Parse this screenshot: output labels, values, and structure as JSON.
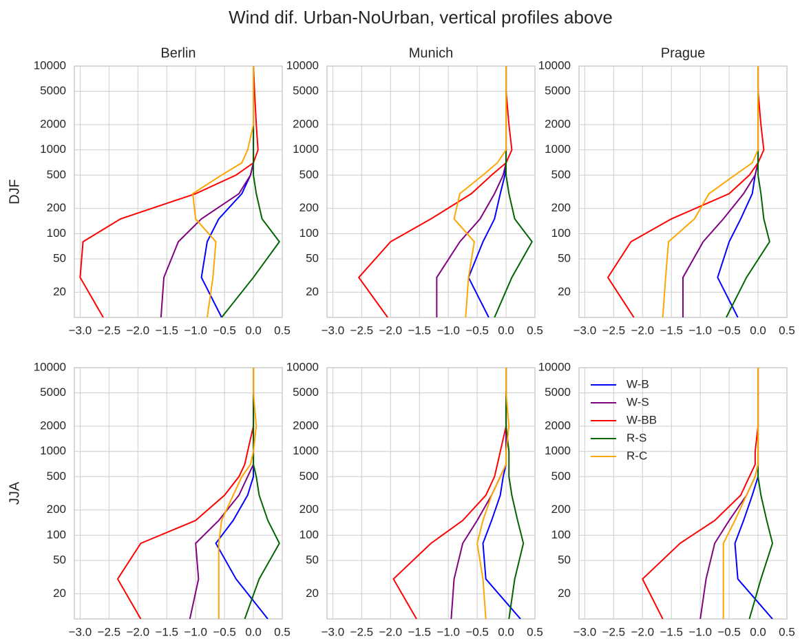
{
  "title": "Wind dif. Urban-NoUrban, vertical profiles above",
  "chart_data": [
    {
      "type": "line",
      "title": "Berlin",
      "ylabel": "DJF",
      "yscale": "log",
      "grid": true,
      "xlim": [
        -3.1,
        0.5
      ],
      "ylim": [
        10,
        10000
      ],
      "xticks": [
        {
          "value": -3.0,
          "label": "−3.0"
        },
        {
          "value": -2.5,
          "label": "−2.5"
        },
        {
          "value": -2.0,
          "label": "−2.0"
        },
        {
          "value": -1.5,
          "label": "−1.5"
        },
        {
          "value": -1.0,
          "label": "−1.0"
        },
        {
          "value": -0.5,
          "label": "−0.5"
        },
        {
          "value": 0,
          "label": "0.0"
        },
        0.5
      ],
      "yticks": [
        20,
        50,
        100,
        200,
        500,
        1000,
        2000,
        5000,
        10000
      ],
      "y": [
        10,
        30,
        80,
        150,
        300,
        500,
        700,
        1000,
        2000,
        5000,
        10000
      ],
      "series": [
        {
          "name": "W-B",
          "color": "#0000ff",
          "values": [
            -0.55,
            -0.9,
            -0.8,
            -0.6,
            -0.2,
            -0.05,
            0.0,
            0.0,
            0.0,
            0.0,
            0.0
          ]
        },
        {
          "name": "W-S",
          "color": "#800080",
          "values": [
            -1.6,
            -1.55,
            -1.3,
            -0.9,
            -0.25,
            -0.05,
            0.0,
            0.0,
            0.0,
            0.0,
            0.0
          ]
        },
        {
          "name": "W-BB",
          "color": "#ff0000",
          "values": [
            -2.6,
            -3.0,
            -2.95,
            -2.3,
            -1.0,
            -0.3,
            0.0,
            0.08,
            0.05,
            0.02,
            0.0
          ]
        },
        {
          "name": "R-S",
          "color": "#006400",
          "values": [
            -0.55,
            0.0,
            0.45,
            0.15,
            0.05,
            0.0,
            0.0,
            0.0,
            0.0,
            0.0,
            0.0
          ]
        },
        {
          "name": "R-C",
          "color": "#ffa500",
          "values": [
            -0.8,
            -0.7,
            -0.65,
            -1.0,
            -1.05,
            -0.55,
            -0.2,
            -0.1,
            0.0,
            0.0,
            0.0
          ]
        }
      ]
    },
    {
      "type": "line",
      "title": "Munich",
      "yscale": "log",
      "grid": true,
      "xlim": [
        -3.1,
        0.5
      ],
      "ylim": [
        10,
        10000
      ],
      "xticks": [
        {
          "value": -3.0,
          "label": "−3.0"
        },
        {
          "value": -2.5,
          "label": "−2.5"
        },
        {
          "value": -2.0,
          "label": "−2.0"
        },
        {
          "value": -1.5,
          "label": "−1.5"
        },
        {
          "value": -1.0,
          "label": "−1.0"
        },
        {
          "value": -0.5,
          "label": "−0.5"
        },
        {
          "value": 0,
          "label": "0.0"
        },
        0.5
      ],
      "yticks": [
        20,
        50,
        100,
        200,
        500,
        1000,
        2000,
        5000,
        10000
      ],
      "y": [
        10,
        30,
        80,
        150,
        300,
        500,
        700,
        1000,
        2000,
        5000,
        10000
      ],
      "series": [
        {
          "name": "W-B",
          "color": "#0000ff",
          "values": [
            -0.3,
            -0.65,
            -0.4,
            -0.2,
            -0.1,
            -0.02,
            0.0,
            0.0,
            0.0,
            0.0,
            0.0
          ]
        },
        {
          "name": "W-S",
          "color": "#800080",
          "values": [
            -1.2,
            -1.2,
            -0.8,
            -0.45,
            -0.2,
            -0.05,
            0.0,
            0.0,
            0.0,
            0.0,
            0.0
          ]
        },
        {
          "name": "W-BB",
          "color": "#ff0000",
          "values": [
            -2.05,
            -2.55,
            -2.0,
            -1.3,
            -0.6,
            -0.25,
            0.0,
            0.1,
            0.05,
            0.0,
            0.0
          ]
        },
        {
          "name": "R-S",
          "color": "#006400",
          "values": [
            -0.2,
            0.1,
            0.45,
            0.15,
            0.05,
            0.0,
            0.0,
            0.0,
            0.0,
            0.0,
            0.0
          ]
        },
        {
          "name": "R-C",
          "color": "#ffa500",
          "values": [
            -0.7,
            -0.65,
            -0.55,
            -0.9,
            -0.8,
            -0.4,
            -0.15,
            0.0,
            0.0,
            0.0,
            0.0
          ]
        }
      ]
    },
    {
      "type": "line",
      "title": "Prague",
      "yscale": "log",
      "grid": true,
      "xlim": [
        -3.1,
        0.5
      ],
      "ylim": [
        10,
        10000
      ],
      "xticks": [
        {
          "value": -3.0,
          "label": "−3.0"
        },
        {
          "value": -2.5,
          "label": "−2.5"
        },
        {
          "value": -2.0,
          "label": "−2.0"
        },
        {
          "value": -1.5,
          "label": "−1.5"
        },
        {
          "value": -1.0,
          "label": "−1.0"
        },
        {
          "value": -0.5,
          "label": "−0.5"
        },
        {
          "value": 0,
          "label": "0.0"
        },
        0.5
      ],
      "yticks": [
        20,
        50,
        100,
        200,
        500,
        1000,
        2000,
        5000,
        10000
      ],
      "y": [
        10,
        30,
        80,
        150,
        300,
        500,
        700,
        1000,
        2000,
        5000,
        10000
      ],
      "series": [
        {
          "name": "W-B",
          "color": "#0000ff",
          "values": [
            -0.35,
            -0.7,
            -0.5,
            -0.3,
            -0.1,
            -0.05,
            0.0,
            0.0,
            0.0,
            0.0,
            0.0
          ]
        },
        {
          "name": "W-S",
          "color": "#800080",
          "values": [
            -1.3,
            -1.3,
            -0.95,
            -0.6,
            -0.25,
            -0.05,
            0.0,
            0.0,
            0.0,
            0.0,
            0.0
          ]
        },
        {
          "name": "W-BB",
          "color": "#ff0000",
          "values": [
            -2.15,
            -2.6,
            -2.2,
            -1.5,
            -0.5,
            -0.15,
            0.0,
            0.1,
            0.05,
            0.0,
            0.0
          ]
        },
        {
          "name": "R-S",
          "color": "#006400",
          "values": [
            -0.55,
            -0.2,
            0.2,
            0.1,
            0.05,
            0.0,
            0.0,
            0.0,
            0.0,
            0.0,
            0.0
          ]
        },
        {
          "name": "R-C",
          "color": "#ffa500",
          "values": [
            -1.65,
            -1.6,
            -1.55,
            -1.1,
            -0.85,
            -0.4,
            -0.1,
            0.0,
            0.0,
            0.0,
            0.0
          ]
        }
      ]
    },
    {
      "type": "line",
      "ylabel": "JJA",
      "yscale": "log",
      "grid": true,
      "xlim": [
        -3.1,
        0.5
      ],
      "ylim": [
        10,
        10000
      ],
      "xticks": [
        {
          "value": -3.0,
          "label": "−3.0"
        },
        {
          "value": -2.5,
          "label": "−2.5"
        },
        {
          "value": -2.0,
          "label": "−2.0"
        },
        {
          "value": -1.5,
          "label": "−1.5"
        },
        {
          "value": -1.0,
          "label": "−1.0"
        },
        {
          "value": -0.5,
          "label": "−0.5"
        },
        {
          "value": 0,
          "label": "0.0"
        },
        0.5
      ],
      "yticks": [
        20,
        50,
        100,
        200,
        500,
        1000,
        2000,
        5000,
        10000
      ],
      "y": [
        10,
        30,
        80,
        150,
        300,
        500,
        700,
        1000,
        2000,
        5000,
        10000
      ],
      "series": [
        {
          "name": "W-B",
          "color": "#0000ff",
          "values": [
            0.25,
            -0.3,
            -0.65,
            -0.35,
            -0.1,
            0.0,
            0.0,
            0.0,
            0.0,
            0.0,
            0.0
          ]
        },
        {
          "name": "W-S",
          "color": "#800080",
          "values": [
            -1.1,
            -0.95,
            -1.0,
            -0.6,
            -0.25,
            -0.1,
            0.0,
            0.0,
            0.0,
            0.0,
            0.0
          ]
        },
        {
          "name": "W-BB",
          "color": "#ff0000",
          "values": [
            -1.95,
            -2.35,
            -1.95,
            -1.0,
            -0.5,
            -0.25,
            -0.15,
            -0.1,
            0.0,
            0.0,
            0.0
          ]
        },
        {
          "name": "R-S",
          "color": "#006400",
          "values": [
            -0.15,
            0.1,
            0.45,
            0.25,
            0.1,
            0.05,
            0.0,
            0.0,
            0.0,
            0.0,
            0.0
          ]
        },
        {
          "name": "R-C",
          "color": "#ffa500",
          "values": [
            -0.6,
            -0.6,
            -0.6,
            -0.55,
            -0.35,
            -0.2,
            -0.05,
            0.0,
            0.05,
            0.0,
            0.0
          ]
        }
      ]
    },
    {
      "type": "line",
      "yscale": "log",
      "grid": true,
      "xlim": [
        -3.1,
        0.5
      ],
      "ylim": [
        10,
        10000
      ],
      "xticks": [
        {
          "value": -3.0,
          "label": "−3.0"
        },
        {
          "value": -2.5,
          "label": "−2.5"
        },
        {
          "value": -2.0,
          "label": "−2.0"
        },
        {
          "value": -1.5,
          "label": "−1.5"
        },
        {
          "value": -1.0,
          "label": "−1.0"
        },
        {
          "value": -0.5,
          "label": "−0.5"
        },
        {
          "value": 0,
          "label": "0.0"
        },
        0.5
      ],
      "yticks": [
        20,
        50,
        100,
        200,
        500,
        1000,
        2000,
        5000,
        10000
      ],
      "y": [
        10,
        30,
        80,
        150,
        300,
        500,
        700,
        1000,
        2000,
        5000,
        10000
      ],
      "series": [
        {
          "name": "W-B",
          "color": "#0000ff",
          "values": [
            0.25,
            -0.35,
            -0.4,
            -0.25,
            -0.1,
            -0.05,
            0.0,
            0.0,
            0.0,
            0.0,
            0.0
          ]
        },
        {
          "name": "W-S",
          "color": "#800080",
          "values": [
            -0.95,
            -0.9,
            -0.75,
            -0.5,
            -0.25,
            -0.1,
            0.0,
            0.0,
            0.0,
            0.0,
            0.0
          ]
        },
        {
          "name": "W-BB",
          "color": "#ff0000",
          "values": [
            -1.55,
            -1.95,
            -1.3,
            -0.75,
            -0.35,
            -0.2,
            -0.15,
            -0.1,
            0.0,
            0.0,
            0.0
          ]
        },
        {
          "name": "R-S",
          "color": "#006400",
          "values": [
            0.05,
            0.15,
            0.3,
            0.2,
            0.1,
            0.05,
            0.05,
            0.05,
            0.0,
            0.0,
            0.0
          ]
        },
        {
          "name": "R-C",
          "color": "#ffa500",
          "values": [
            -0.35,
            -0.4,
            -0.5,
            -0.4,
            -0.25,
            -0.1,
            0.0,
            0.0,
            0.05,
            0.0,
            0.0
          ]
        }
      ]
    },
    {
      "type": "line",
      "yscale": "log",
      "grid": true,
      "legend": "upper left",
      "xlim": [
        -3.1,
        0.5
      ],
      "ylim": [
        10,
        10000
      ],
      "xticks": [
        {
          "value": -3.0,
          "label": "−3.0"
        },
        {
          "value": -2.5,
          "label": "−2.5"
        },
        {
          "value": -2.0,
          "label": "−2.0"
        },
        {
          "value": -1.5,
          "label": "−1.5"
        },
        {
          "value": -1.0,
          "label": "−1.0"
        },
        {
          "value": -0.5,
          "label": "−0.5"
        },
        {
          "value": 0,
          "label": "0.0"
        },
        0.5
      ],
      "yticks": [
        20,
        50,
        100,
        200,
        500,
        1000,
        2000,
        5000,
        10000
      ],
      "y": [
        10,
        30,
        80,
        150,
        300,
        500,
        700,
        1000,
        2000,
        5000,
        10000
      ],
      "series": [
        {
          "name": "W-B",
          "color": "#0000ff",
          "values": [
            0.25,
            -0.35,
            -0.4,
            -0.25,
            -0.1,
            0.0,
            0.0,
            0.0,
            0.0,
            0.0,
            0.0
          ]
        },
        {
          "name": "W-S",
          "color": "#800080",
          "values": [
            -1.0,
            -0.9,
            -0.75,
            -0.5,
            -0.2,
            -0.05,
            0.0,
            0.0,
            0.0,
            0.0,
            0.0
          ]
        },
        {
          "name": "W-BB",
          "color": "#ff0000",
          "values": [
            -1.65,
            -2.0,
            -1.35,
            -0.75,
            -0.3,
            -0.15,
            -0.05,
            -0.05,
            0.0,
            0.0,
            0.0
          ]
        },
        {
          "name": "R-S",
          "color": "#006400",
          "values": [
            -0.15,
            0.05,
            0.25,
            0.15,
            0.05,
            0.0,
            0.0,
            0.0,
            0.0,
            0.0,
            0.0
          ]
        },
        {
          "name": "R-C",
          "color": "#ffa500",
          "values": [
            -0.6,
            -0.6,
            -0.6,
            -0.4,
            -0.2,
            -0.05,
            0.0,
            0.0,
            0.0,
            0.0,
            0.0
          ]
        }
      ]
    }
  ]
}
